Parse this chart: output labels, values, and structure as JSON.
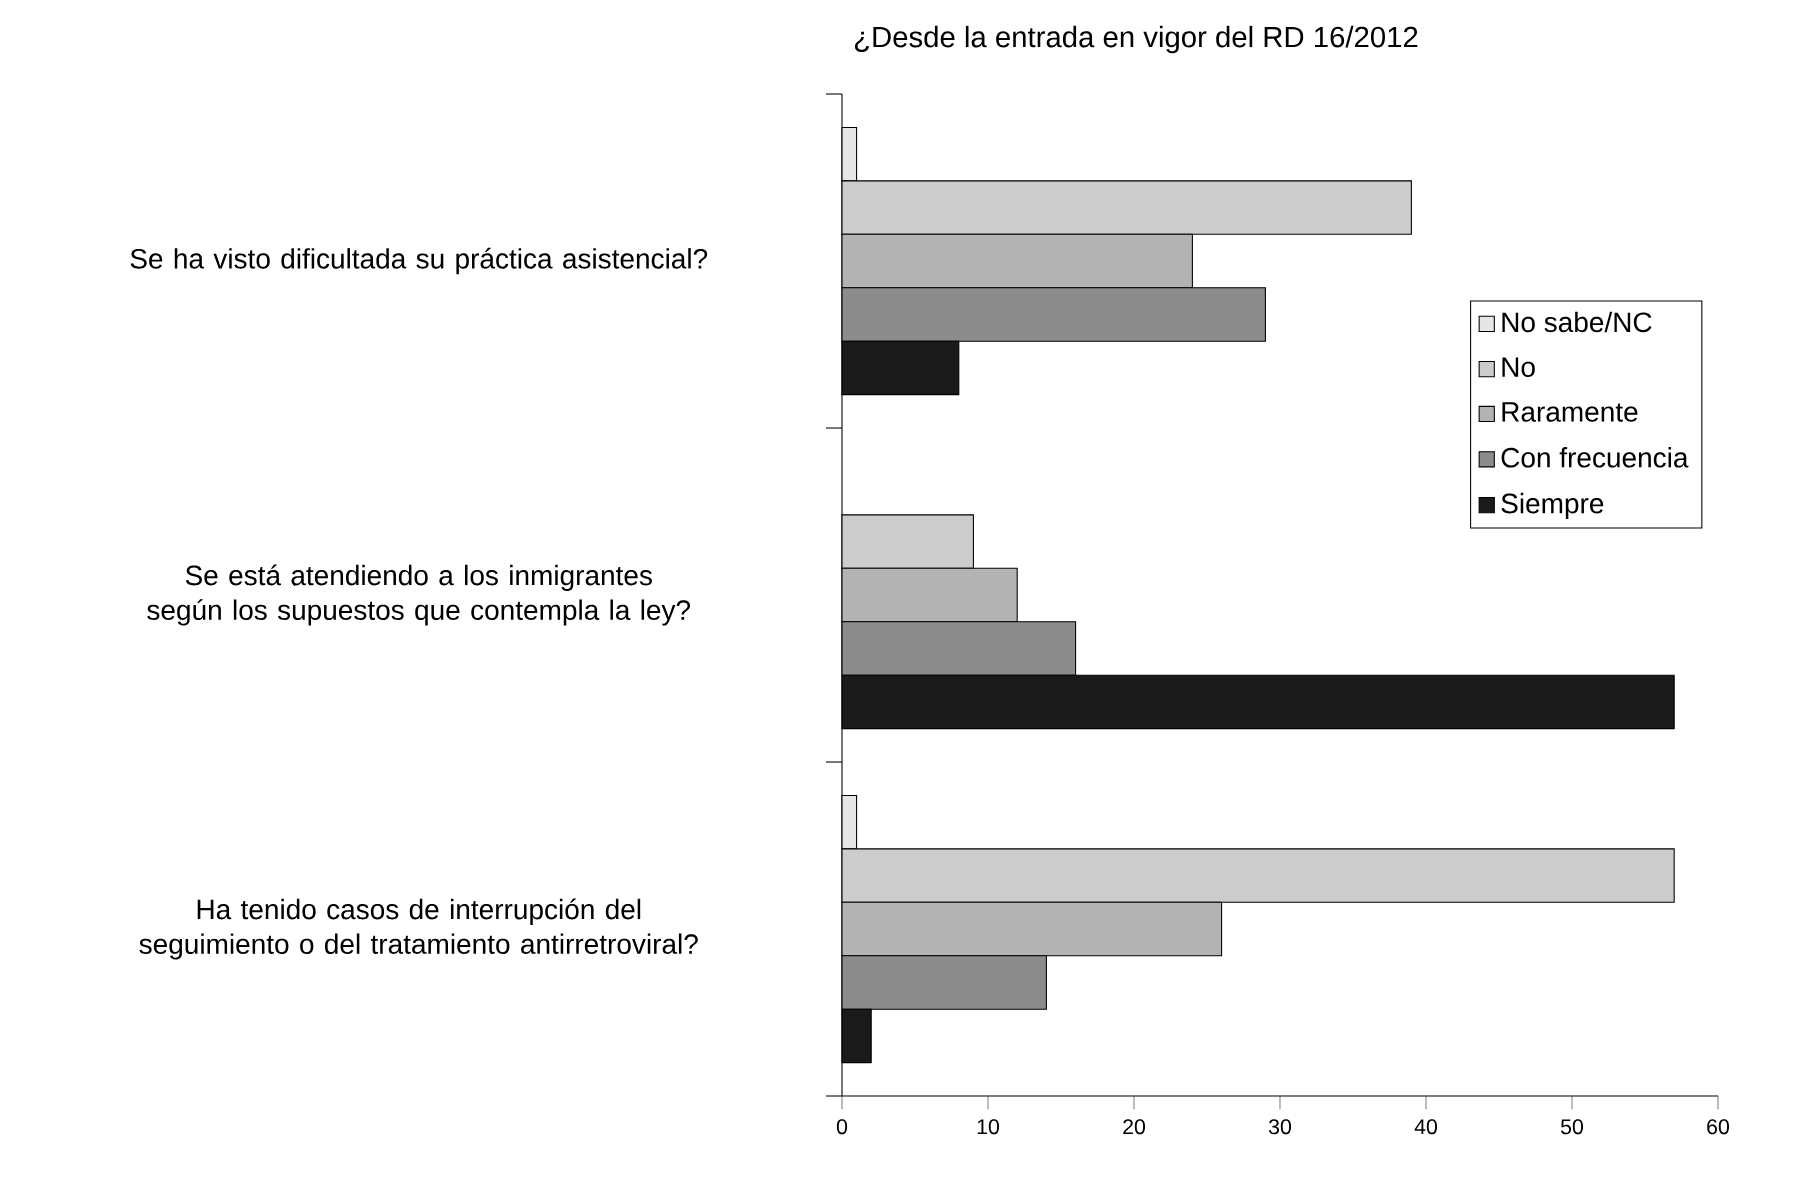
{
  "chart_data": {
    "type": "bar",
    "orientation": "horizontal",
    "title": "¿Desde la entrada en vigor del RD 16/2012",
    "categories": [
      "Se ha visto dificultada su práctica asistencial?",
      "Se está atendiendo a los inmigrantes según los supuestos que contempla la ley?",
      "Ha tenido casos de interrupción del seguimiento o del tratamiento antirretroviral?"
    ],
    "series": [
      {
        "name": "No sabe/NC",
        "color": "#e6e6e6",
        "values": [
          1,
          null,
          1
        ]
      },
      {
        "name": "No",
        "color": "#cccccc",
        "values": [
          39,
          9,
          57
        ]
      },
      {
        "name": "Raramente",
        "color": "#b3b3b3",
        "values": [
          24,
          12,
          26
        ]
      },
      {
        "name": "Con frecuencia",
        "color": "#8c8c8c",
        "values": [
          29,
          16,
          14
        ]
      },
      {
        "name": "Siempre",
        "color": "#1a1a1a",
        "values": [
          8,
          57,
          2
        ]
      }
    ],
    "xlim": [
      0,
      60
    ],
    "xticks": [
      0,
      10,
      20,
      30,
      40,
      50,
      60
    ],
    "grid": false,
    "legend": "right"
  }
}
